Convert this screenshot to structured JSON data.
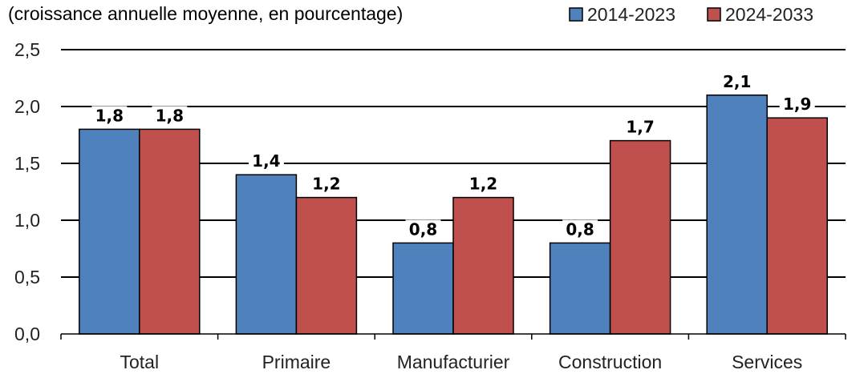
{
  "chart_data": {
    "type": "bar",
    "ylabel": "(croissance annuelle moyenne, en pourcentage)",
    "categories": [
      "Total",
      "Primaire",
      "Manufacturier",
      "Construction",
      "Services"
    ],
    "series": [
      {
        "name": "2014-2023",
        "color": "#4f81bd",
        "values": [
          1.8,
          1.4,
          0.8,
          0.8,
          2.1
        ],
        "labels": [
          "1,8",
          "1,4",
          "0,8",
          "0,8",
          "2,1"
        ]
      },
      {
        "name": "2024-2033",
        "color": "#c0504d",
        "values": [
          1.8,
          1.2,
          1.2,
          1.7,
          1.9
        ],
        "labels": [
          "1,8",
          "1,2",
          "1,2",
          "1,7",
          "1,9"
        ]
      }
    ],
    "ylim": [
      0,
      2.5
    ],
    "yticks": [
      0,
      0.5,
      1.0,
      1.5,
      2.0,
      2.5
    ],
    "ytick_labels": [
      "0,0",
      "0,5",
      "1,0",
      "1,5",
      "2,0",
      "2,5"
    ],
    "grid": true,
    "legend": "top-right"
  }
}
